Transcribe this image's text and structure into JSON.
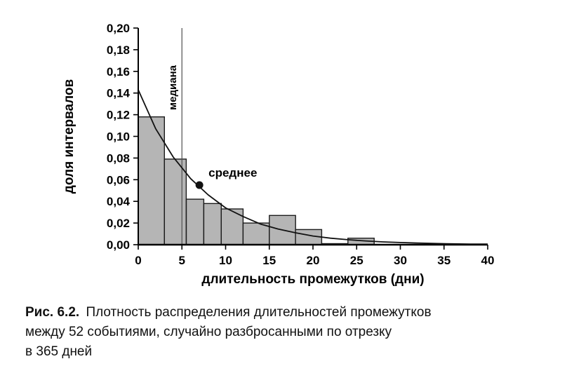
{
  "caption": {
    "label": "Рис. 6.2.",
    "lines": [
      "Плотность распределения длительностей промежутков",
      "между 52 событиями, случайно разбросанными по отрезку",
      "в 365 дней"
    ]
  },
  "chart_data": {
    "type": "bar",
    "subtype": "histogram with exponential density curve overlay",
    "title": "",
    "xlabel": "длительность промежутков (дни)",
    "ylabel": "доля интервалов",
    "xlim": [
      0,
      40
    ],
    "ylim": [
      0,
      0.2
    ],
    "grid": false,
    "legend": "none",
    "x_ticks": [
      0,
      5,
      10,
      15,
      20,
      25,
      30,
      35,
      40
    ],
    "y_ticks": [
      {
        "value": 0.0,
        "label": "0,00"
      },
      {
        "value": 0.02,
        "label": "0,02"
      },
      {
        "value": 0.04,
        "label": "0,04"
      },
      {
        "value": 0.06,
        "label": "0,06"
      },
      {
        "value": 0.08,
        "label": "0,08"
      },
      {
        "value": 0.1,
        "label": "0,10"
      },
      {
        "value": 0.12,
        "label": "0,12"
      },
      {
        "value": 0.14,
        "label": "0,14"
      },
      {
        "value": 0.16,
        "label": "0,16"
      },
      {
        "value": 0.18,
        "label": "0,18"
      },
      {
        "value": 0.2,
        "label": "0,20"
      }
    ],
    "bins": [
      {
        "x0": 0,
        "x1": 3,
        "height": 0.118
      },
      {
        "x0": 3,
        "x1": 5.5,
        "height": 0.079
      },
      {
        "x0": 5.5,
        "x1": 7.5,
        "height": 0.042
      },
      {
        "x0": 7.5,
        "x1": 9.5,
        "height": 0.038
      },
      {
        "x0": 9.5,
        "x1": 12,
        "height": 0.033
      },
      {
        "x0": 12,
        "x1": 15,
        "height": 0.02
      },
      {
        "x0": 15,
        "x1": 18,
        "height": 0.027
      },
      {
        "x0": 18,
        "x1": 21,
        "height": 0.014
      },
      {
        "x0": 21,
        "x1": 24,
        "height": 0.001
      },
      {
        "x0": 24,
        "x1": 27,
        "height": 0.006
      }
    ],
    "curve": {
      "description": "exponential density, mean ≈ 7 days, f(x) = (1/7)·exp(−x/7)",
      "points": [
        [
          0,
          0.143
        ],
        [
          2,
          0.107
        ],
        [
          4,
          0.081
        ],
        [
          6,
          0.061
        ],
        [
          8,
          0.046
        ],
        [
          10,
          0.034
        ],
        [
          12,
          0.026
        ],
        [
          14,
          0.019
        ],
        [
          16,
          0.0145
        ],
        [
          18,
          0.011
        ],
        [
          20,
          0.008
        ],
        [
          22,
          0.006
        ],
        [
          24,
          0.0046
        ],
        [
          26,
          0.0035
        ],
        [
          28,
          0.0026
        ],
        [
          30,
          0.002
        ],
        [
          32,
          0.0015
        ],
        [
          34,
          0.0011
        ],
        [
          36,
          0.0008
        ],
        [
          38,
          0.0006
        ],
        [
          40,
          0.0005
        ]
      ]
    },
    "annotations": {
      "median_line": {
        "x": 5,
        "label": "медиана"
      },
      "mean_point": {
        "x": 7,
        "y": 0.055,
        "label": "среднее"
      }
    },
    "colors": {
      "bar_fill": "#b5b5b5",
      "bar_stroke": "#1c1c1c",
      "curve": "#111111",
      "median_line": "#4f4f4f",
      "point": "#111111",
      "axis": "#000000"
    }
  }
}
